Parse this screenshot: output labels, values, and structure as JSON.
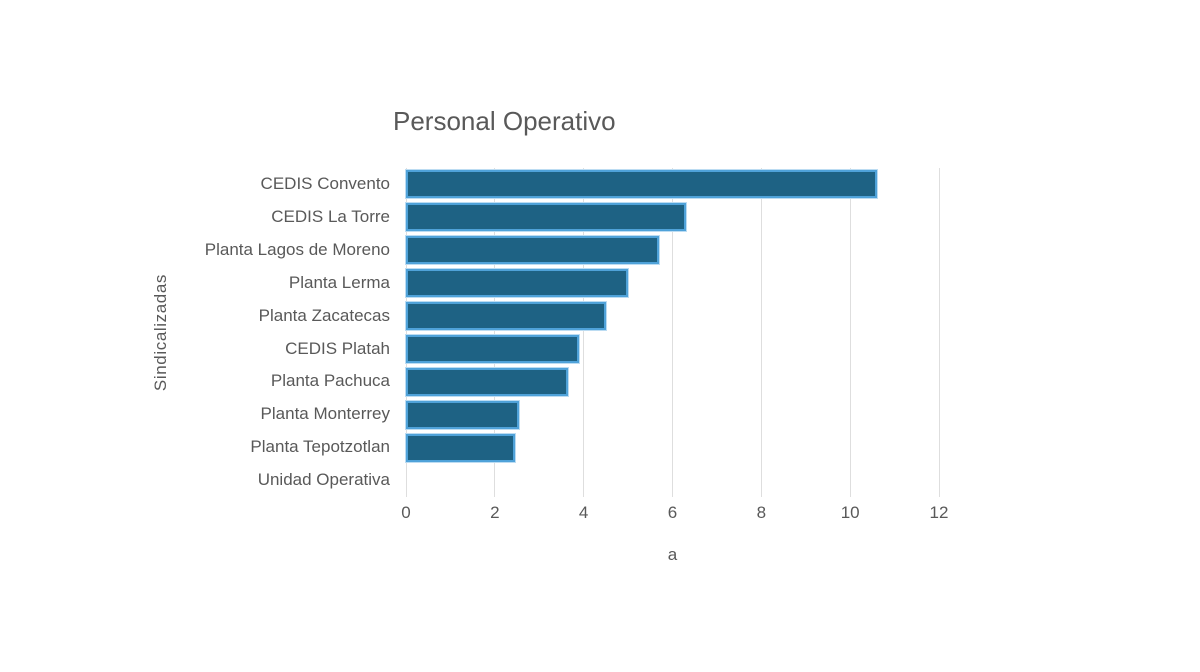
{
  "chart_data": {
    "type": "bar",
    "orientation": "horizontal",
    "title": "Personal Operativo",
    "xlabel": "a",
    "ylabel": "Sindicalizadas",
    "categories": [
      "CEDIS Convento",
      "CEDIS La Torre",
      "Planta Lagos de Moreno",
      "Planta Lerma",
      "Planta Zacatecas",
      "CEDIS Platah",
      "Planta Pachuca",
      "Planta Monterrey",
      "Planta Tepotzotlan",
      "Unidad Operativa"
    ],
    "values": [
      10.6,
      6.3,
      5.7,
      5.0,
      4.5,
      3.9,
      3.65,
      2.55,
      2.45,
      0
    ],
    "xlim": [
      0,
      12
    ],
    "xticks": [
      0,
      2,
      4,
      6,
      8,
      10,
      12
    ],
    "grid": "vertical",
    "legend": "none",
    "colors": {
      "bar_fill": "#1E6284",
      "bar_border": "#4FA2D9",
      "gridline": "#dedede",
      "text": "#595959"
    }
  }
}
